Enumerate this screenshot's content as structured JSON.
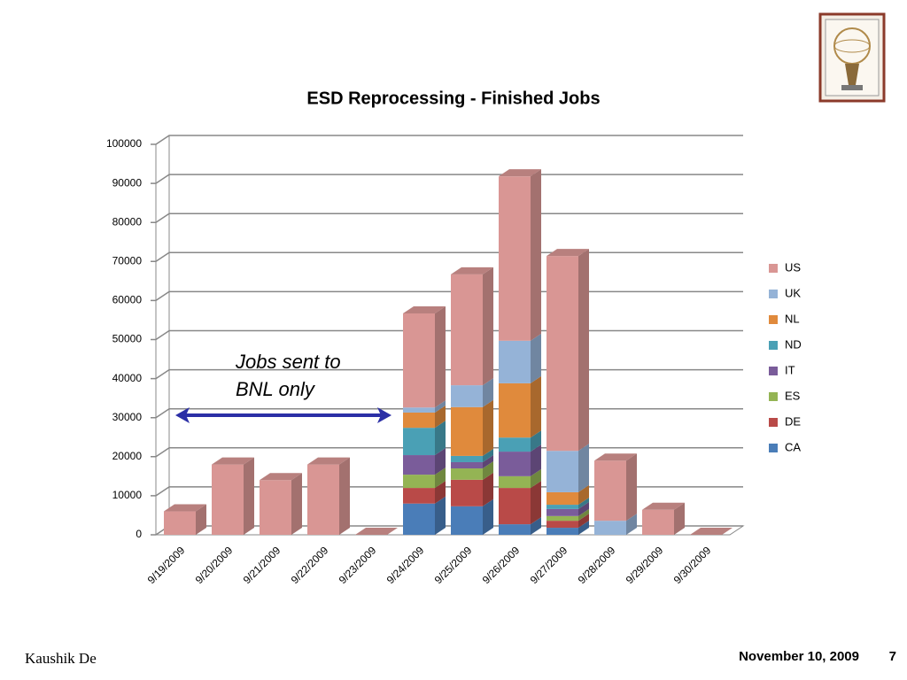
{
  "chart_data": {
    "type": "stacked-bar-3d",
    "title": "ESD Reprocessing - Finished Jobs",
    "categories": [
      "9/19/2009",
      "9/20/2009",
      "9/21/2009",
      "9/22/2009",
      "9/23/2009",
      "9/24/2009",
      "9/25/2009",
      "9/26/2009",
      "9/27/2009",
      "9/28/2009",
      "9/29/2009",
      "9/30/2009"
    ],
    "series": [
      {
        "name": "CA",
        "color": "#4a7db8",
        "values": [
          0,
          0,
          0,
          0,
          0,
          8000,
          7300,
          2700,
          1800,
          0,
          0,
          0
        ]
      },
      {
        "name": "DE",
        "color": "#b94a48",
        "values": [
          0,
          0,
          0,
          0,
          0,
          4000,
          6800,
          9300,
          1800,
          0,
          0,
          0
        ]
      },
      {
        "name": "ES",
        "color": "#94b454",
        "values": [
          0,
          0,
          0,
          0,
          0,
          3400,
          2900,
          3000,
          1200,
          0,
          0,
          0
        ]
      },
      {
        "name": "IT",
        "color": "#7a5c9a",
        "values": [
          0,
          0,
          0,
          0,
          0,
          5000,
          1600,
          6300,
          1800,
          0,
          0,
          0
        ]
      },
      {
        "name": "ND",
        "color": "#4aa0b5",
        "values": [
          0,
          0,
          0,
          0,
          0,
          7000,
          1600,
          3600,
          1100,
          0,
          0,
          0
        ]
      },
      {
        "name": "NL",
        "color": "#e08a3c",
        "values": [
          0,
          0,
          0,
          0,
          0,
          3900,
          12500,
          13900,
          3200,
          0,
          0,
          0
        ]
      },
      {
        "name": "UK",
        "color": "#95b3d7",
        "values": [
          0,
          0,
          0,
          0,
          0,
          1300,
          5600,
          10900,
          10600,
          3600,
          0,
          0
        ]
      },
      {
        "name": "US",
        "color": "#d99694",
        "values": [
          6000,
          18000,
          14000,
          18000,
          0,
          24100,
          28400,
          42100,
          49900,
          15400,
          6400,
          0
        ]
      }
    ],
    "ylim": [
      0,
      100000
    ],
    "yticks": [
      0,
      10000,
      20000,
      30000,
      40000,
      50000,
      60000,
      70000,
      80000,
      90000,
      100000
    ],
    "grid": true,
    "legend": "right",
    "annotation": [
      "Jobs sent to",
      "BNL only"
    ]
  },
  "footer": {
    "author": "Kaushik De",
    "date": "November 10, 2009",
    "page": "7"
  }
}
